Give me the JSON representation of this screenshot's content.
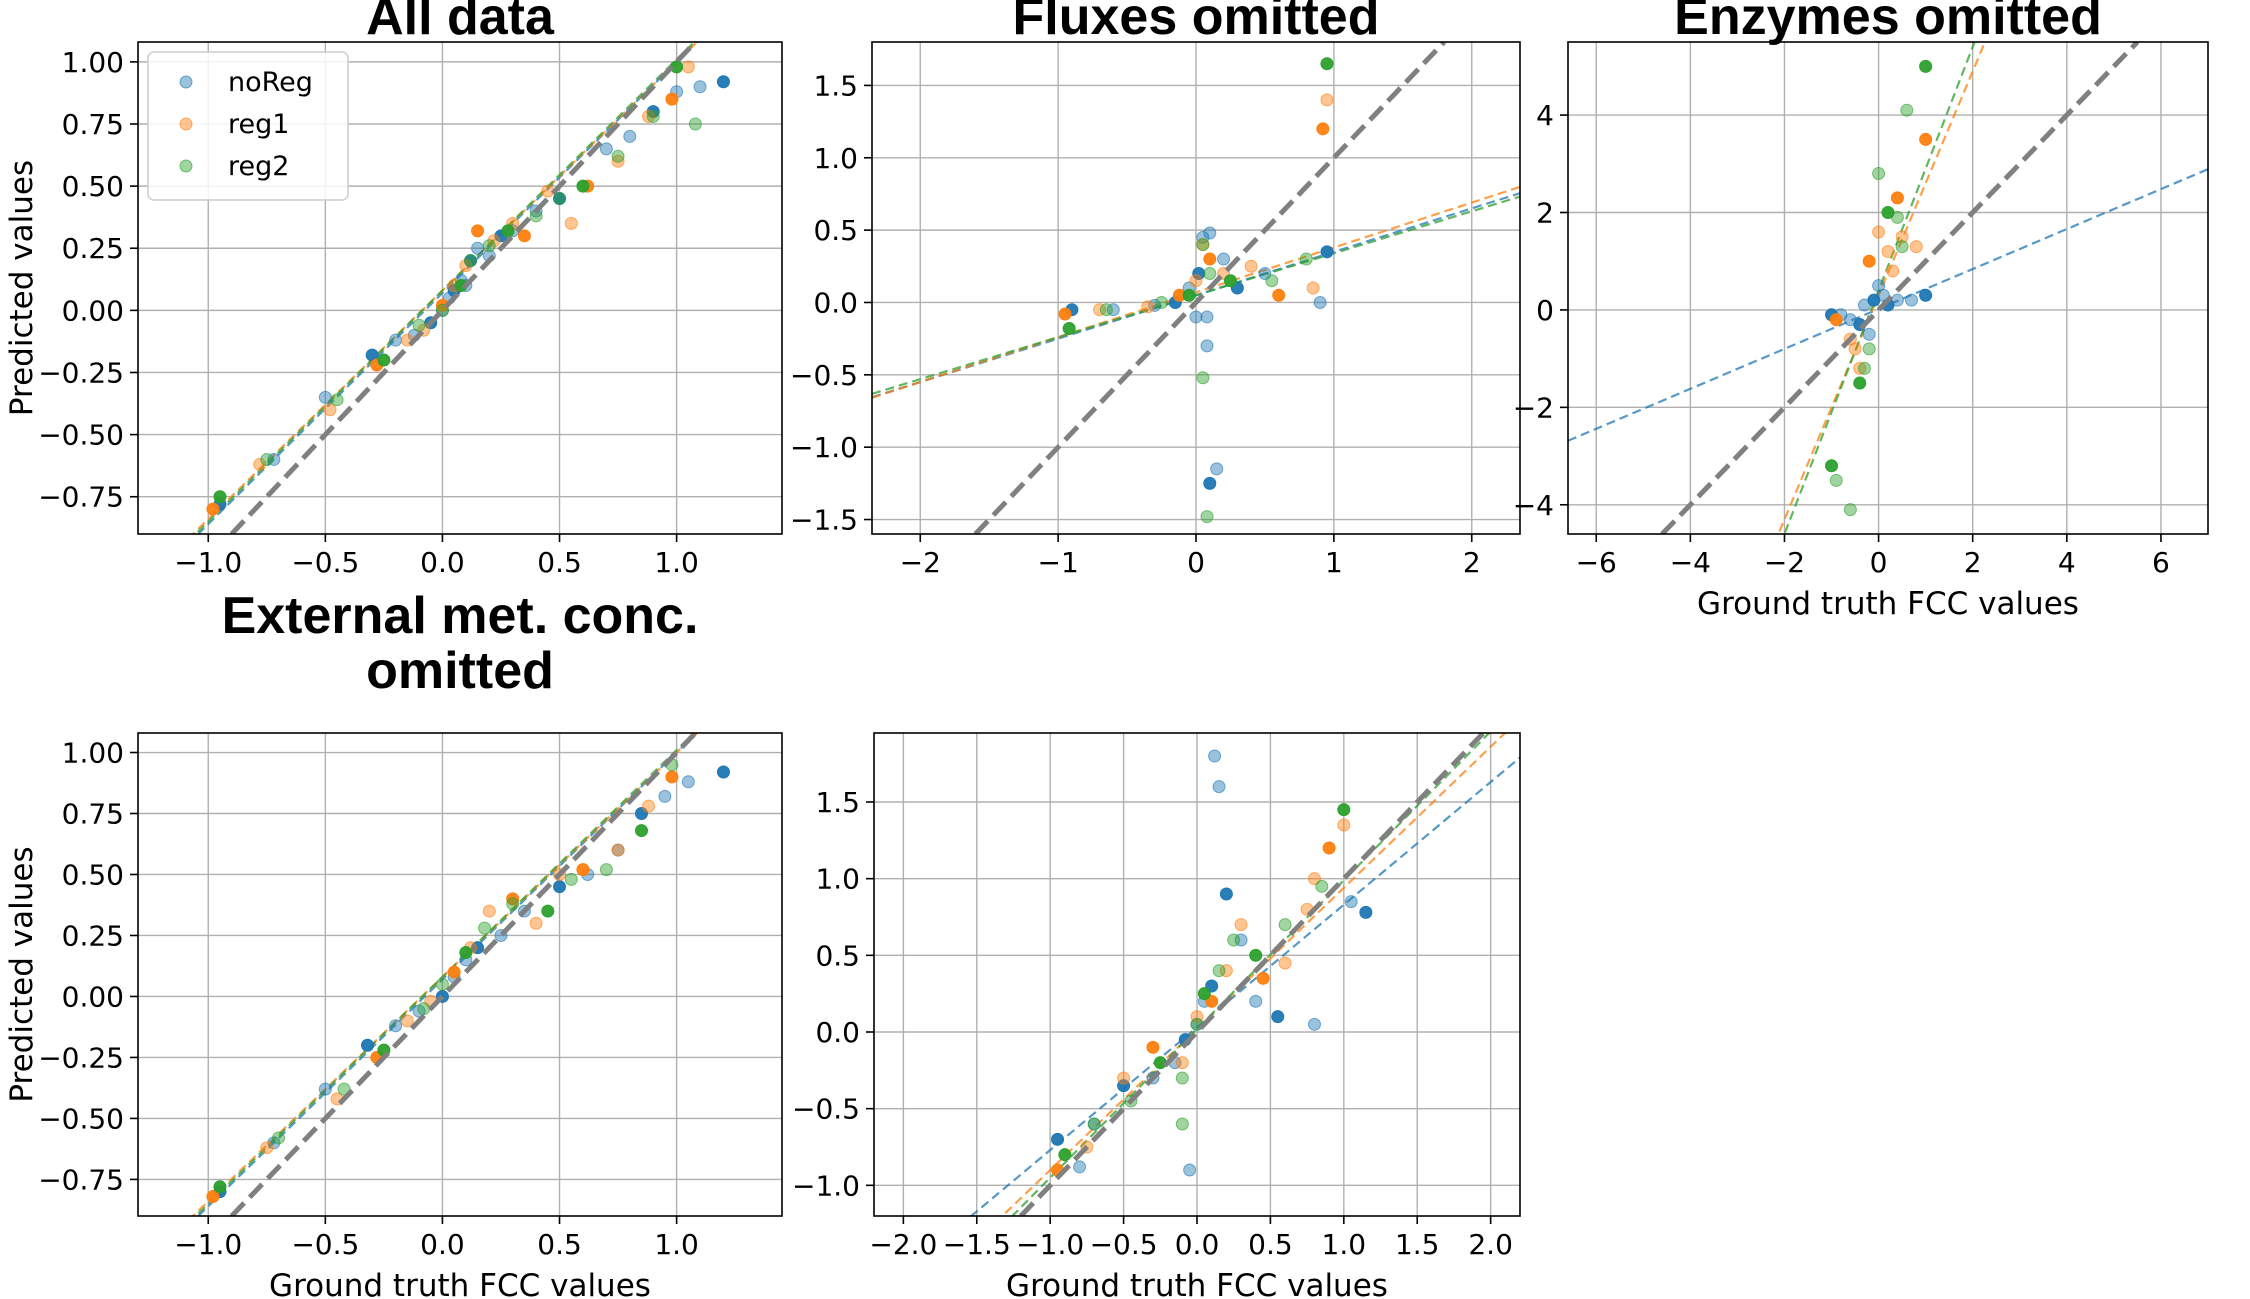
{
  "colors": {
    "noReg": "#1f77b4",
    "reg1": "#ff7f0e",
    "reg2": "#2ca02c",
    "identity": "#808080",
    "grid": "#b0b0b0"
  },
  "legend": {
    "location": "upper-left",
    "panel": 0,
    "entries": [
      "noReg",
      "reg1",
      "reg2"
    ]
  },
  "chart_data": [
    {
      "type": "scatter",
      "title": "All data",
      "xlabel": "",
      "ylabel": "Predicted values",
      "xlim": [
        -1.3,
        1.45
      ],
      "ylim": [
        -0.9,
        1.08
      ],
      "xticks": [
        -1.0,
        -0.5,
        0.0,
        0.5,
        1.0
      ],
      "xtick_labels": [
        "−1.0",
        "−0.5",
        "0.0",
        "0.5",
        "1.0"
      ],
      "yticks": [
        -0.75,
        -0.5,
        -0.25,
        0.0,
        0.25,
        0.5,
        0.75,
        1.0
      ],
      "ytick_labels": [
        "−0.75",
        "−0.50",
        "−0.25",
        "0.00",
        "0.25",
        "0.50",
        "0.75",
        "1.00"
      ],
      "grid": true,
      "identity_line": true,
      "fits": [
        {
          "name": "noReg",
          "slope": 0.93,
          "intercept": 0.07
        },
        {
          "name": "reg1",
          "slope": 0.92,
          "intercept": 0.08
        },
        {
          "name": "reg2",
          "slope": 0.93,
          "intercept": 0.08
        }
      ],
      "series": [
        {
          "name": "noReg",
          "x": [
            -0.95,
            -0.72,
            -0.5,
            -0.3,
            -0.2,
            -0.12,
            -0.05,
            0.0,
            0.03,
            0.05,
            0.08,
            0.1,
            0.12,
            0.15,
            0.2,
            0.25,
            0.3,
            0.4,
            0.5,
            0.7,
            0.8,
            0.9,
            1.0,
            1.1,
            1.2
          ],
          "y": [
            -0.78,
            -0.6,
            -0.35,
            -0.18,
            -0.12,
            -0.1,
            -0.05,
            0.0,
            0.05,
            0.08,
            0.12,
            0.1,
            0.2,
            0.25,
            0.22,
            0.3,
            0.32,
            0.4,
            0.45,
            0.65,
            0.7,
            0.8,
            0.88,
            0.9,
            0.92
          ]
        },
        {
          "name": "reg1",
          "x": [
            -0.98,
            -0.78,
            -0.48,
            -0.28,
            -0.15,
            -0.08,
            0.0,
            0.05,
            0.1,
            0.15,
            0.22,
            0.3,
            0.35,
            0.45,
            0.55,
            0.62,
            0.75,
            0.88,
            0.98,
            1.05
          ],
          "y": [
            -0.8,
            -0.62,
            -0.4,
            -0.22,
            -0.12,
            -0.08,
            0.02,
            0.1,
            0.18,
            0.32,
            0.28,
            0.35,
            0.3,
            0.48,
            0.35,
            0.5,
            0.6,
            0.78,
            0.85,
            0.98
          ]
        },
        {
          "name": "reg2",
          "x": [
            -0.95,
            -0.75,
            -0.45,
            -0.25,
            -0.1,
            0.0,
            0.08,
            0.12,
            0.2,
            0.28,
            0.4,
            0.5,
            0.6,
            0.75,
            0.9,
            1.0,
            1.08
          ],
          "y": [
            -0.75,
            -0.6,
            -0.36,
            -0.2,
            -0.06,
            0.0,
            0.1,
            0.2,
            0.26,
            0.32,
            0.38,
            0.45,
            0.5,
            0.62,
            0.78,
            0.98,
            0.75
          ]
        }
      ]
    },
    {
      "type": "scatter",
      "title": "Fluxes omitted",
      "xlabel": "",
      "ylabel": "",
      "xlim": [
        -2.35,
        2.35
      ],
      "ylim": [
        -1.6,
        1.8
      ],
      "xticks": [
        -2,
        -1,
        0,
        1,
        2
      ],
      "xtick_labels": [
        "−2",
        "−1",
        "0",
        "1",
        "2"
      ],
      "yticks": [
        -1.5,
        -1.0,
        -0.5,
        0.0,
        0.5,
        1.0,
        1.5
      ],
      "ytick_labels": [
        "−1.5",
        "−1.0",
        "−0.5",
        "0.0",
        "0.5",
        "1.0",
        "1.5"
      ],
      "grid": true,
      "identity_line": true,
      "fits": [
        {
          "name": "noReg",
          "slope": 0.3,
          "intercept": 0.05
        },
        {
          "name": "reg1",
          "slope": 0.31,
          "intercept": 0.07
        },
        {
          "name": "reg2",
          "slope": 0.29,
          "intercept": 0.05
        }
      ],
      "series": [
        {
          "name": "noReg",
          "x": [
            -0.9,
            -0.6,
            -0.3,
            -0.15,
            -0.05,
            0.0,
            0.02,
            0.05,
            0.08,
            0.1,
            0.15,
            0.2,
            0.3,
            0.5,
            0.9,
            0.95,
            0.1,
            0.08
          ],
          "y": [
            -0.05,
            -0.05,
            -0.02,
            0.0,
            0.1,
            -0.1,
            0.2,
            0.45,
            -0.1,
            -1.25,
            -1.15,
            0.3,
            0.1,
            0.2,
            0.0,
            0.35,
            0.48,
            -0.3
          ]
        },
        {
          "name": "reg1",
          "x": [
            -0.95,
            -0.7,
            -0.35,
            -0.12,
            0.0,
            0.05,
            0.1,
            0.2,
            0.4,
            0.6,
            0.85,
            0.95,
            0.92
          ],
          "y": [
            -0.08,
            -0.05,
            -0.03,
            0.05,
            0.15,
            0.4,
            0.3,
            0.2,
            0.25,
            0.05,
            0.1,
            1.4,
            1.2
          ]
        },
        {
          "name": "reg2",
          "x": [
            -0.92,
            -0.65,
            -0.25,
            -0.05,
            0.05,
            0.1,
            0.25,
            0.55,
            0.8,
            0.95,
            0.05,
            0.08
          ],
          "y": [
            -0.18,
            -0.05,
            0.0,
            0.05,
            0.4,
            0.2,
            0.15,
            0.15,
            0.3,
            1.65,
            -0.52,
            -1.48
          ]
        }
      ]
    },
    {
      "type": "scatter",
      "title": "Enzymes omitted",
      "xlabel": "Ground truth FCC values",
      "ylabel": "",
      "xlim": [
        -6.6,
        7.0
      ],
      "ylim": [
        -4.6,
        5.5
      ],
      "xticks": [
        -6,
        -4,
        -2,
        0,
        2,
        4,
        6
      ],
      "xtick_labels": [
        "−6",
        "−4",
        "−2",
        "0",
        "2",
        "4",
        "6"
      ],
      "yticks": [
        -4,
        -2,
        0,
        2,
        4
      ],
      "ytick_labels": [
        "−4",
        "−2",
        "0",
        "2",
        "4"
      ],
      "grid": true,
      "identity_line": true,
      "fits": [
        {
          "name": "noReg",
          "slope": 0.41,
          "intercept": 0.02
        },
        {
          "name": "reg1",
          "slope": 2.3,
          "intercept": 0.3
        },
        {
          "name": "reg2",
          "slope": 2.5,
          "intercept": 0.4
        }
      ],
      "series": [
        {
          "name": "noReg",
          "x": [
            -1.0,
            -0.8,
            -0.6,
            -0.4,
            -0.3,
            -0.2,
            -0.1,
            0.0,
            0.1,
            0.2,
            0.4,
            0.7,
            1.0
          ],
          "y": [
            -0.1,
            -0.1,
            -0.2,
            -0.3,
            0.1,
            -0.5,
            0.2,
            0.5,
            0.3,
            0.1,
            0.2,
            0.2,
            0.3
          ]
        },
        {
          "name": "reg1",
          "x": [
            -0.9,
            -0.6,
            -0.4,
            -0.2,
            0.0,
            0.2,
            0.4,
            0.5,
            0.8,
            1.0,
            0.3,
            -0.5
          ],
          "y": [
            -0.2,
            -0.6,
            -1.2,
            1.0,
            1.6,
            1.2,
            2.3,
            1.5,
            1.3,
            3.5,
            0.8,
            -0.8
          ]
        },
        {
          "name": "reg2",
          "x": [
            -1.0,
            -0.9,
            -0.6,
            -0.4,
            -0.2,
            0.0,
            0.2,
            0.4,
            0.6,
            1.0,
            0.5,
            -0.3
          ],
          "y": [
            -3.2,
            -3.5,
            -4.1,
            -1.5,
            -0.8,
            2.8,
            2.0,
            1.9,
            4.1,
            5.0,
            1.3,
            -1.2
          ]
        }
      ]
    },
    {
      "type": "scatter",
      "title": "External met. conc. omitted",
      "title_lines": [
        "External met. conc.",
        "omitted"
      ],
      "xlabel": "Ground truth FCC values",
      "ylabel": "Predicted values",
      "xlim": [
        -1.3,
        1.45
      ],
      "ylim": [
        -0.9,
        1.08
      ],
      "xticks": [
        -1.0,
        -0.5,
        0.0,
        0.5,
        1.0
      ],
      "xtick_labels": [
        "−1.0",
        "−0.5",
        "0.0",
        "0.5",
        "1.0"
      ],
      "yticks": [
        -0.75,
        -0.5,
        -0.25,
        0.0,
        0.25,
        0.5,
        0.75,
        1.0
      ],
      "ytick_labels": [
        "−0.75",
        "−0.50",
        "−0.25",
        "0.00",
        "0.25",
        "0.50",
        "0.75",
        "1.00"
      ],
      "grid": true,
      "identity_line": true,
      "fits": [
        {
          "name": "noReg",
          "slope": 0.93,
          "intercept": 0.07
        },
        {
          "name": "reg1",
          "slope": 0.92,
          "intercept": 0.08
        },
        {
          "name": "reg2",
          "slope": 0.93,
          "intercept": 0.08
        }
      ],
      "series": [
        {
          "name": "noReg",
          "x": [
            -0.95,
            -0.72,
            -0.5,
            -0.32,
            -0.2,
            -0.1,
            0.0,
            0.05,
            0.1,
            0.15,
            0.25,
            0.35,
            0.5,
            0.62,
            0.75,
            0.85,
            0.95,
            1.05,
            1.2
          ],
          "y": [
            -0.8,
            -0.6,
            -0.38,
            -0.2,
            -0.12,
            -0.06,
            0.0,
            0.08,
            0.15,
            0.2,
            0.25,
            0.35,
            0.45,
            0.5,
            0.6,
            0.75,
            0.82,
            0.88,
            0.92
          ]
        },
        {
          "name": "reg1",
          "x": [
            -0.98,
            -0.75,
            -0.45,
            -0.28,
            -0.15,
            -0.05,
            0.05,
            0.12,
            0.2,
            0.3,
            0.4,
            0.5,
            0.6,
            0.75,
            0.88,
            0.98
          ],
          "y": [
            -0.82,
            -0.62,
            -0.42,
            -0.25,
            -0.1,
            -0.02,
            0.1,
            0.2,
            0.35,
            0.4,
            0.3,
            0.5,
            0.52,
            0.6,
            0.78,
            0.9
          ]
        },
        {
          "name": "reg2",
          "x": [
            -0.95,
            -0.7,
            -0.42,
            -0.25,
            -0.08,
            0.0,
            0.1,
            0.18,
            0.3,
            0.45,
            0.55,
            0.7,
            0.85,
            0.98
          ],
          "y": [
            -0.78,
            -0.58,
            -0.38,
            -0.22,
            -0.05,
            0.05,
            0.18,
            0.28,
            0.38,
            0.35,
            0.48,
            0.52,
            0.68,
            0.95
          ]
        }
      ]
    },
    {
      "type": "scatter",
      "title": "",
      "xlabel": "Ground truth FCC values",
      "ylabel": "",
      "xlim": [
        -2.2,
        2.2
      ],
      "ylim": [
        -1.2,
        1.95
      ],
      "xticks": [
        -2.0,
        -1.5,
        -1.0,
        -0.5,
        0.0,
        0.5,
        1.0,
        1.5,
        2.0
      ],
      "xtick_labels": [
        "−2.0",
        "−1.5",
        "−1.0",
        "−0.5",
        "0.0",
        "0.5",
        "1.0",
        "1.5",
        "2.0"
      ],
      "yticks": [
        -1.0,
        -0.5,
        0.0,
        0.5,
        1.0,
        1.5
      ],
      "ytick_labels": [
        "−1.0",
        "−0.5",
        "0.0",
        "0.5",
        "1.0",
        "1.5"
      ],
      "grid": true,
      "identity_line": true,
      "fits": [
        {
          "name": "noReg",
          "slope": 0.8,
          "intercept": 0.03
        },
        {
          "name": "reg1",
          "slope": 0.92,
          "intercept": 0.02
        },
        {
          "name": "reg2",
          "slope": 0.97,
          "intercept": 0.02
        }
      ],
      "series": [
        {
          "name": "noReg",
          "x": [
            -0.95,
            -0.8,
            -0.7,
            -0.5,
            -0.3,
            -0.15,
            -0.08,
            0.0,
            0.05,
            0.1,
            0.12,
            0.15,
            0.2,
            0.3,
            0.4,
            0.55,
            0.8,
            1.05,
            1.15,
            -0.05
          ],
          "y": [
            -0.7,
            -0.88,
            -0.6,
            -0.35,
            -0.3,
            -0.2,
            -0.05,
            0.05,
            0.2,
            0.3,
            1.8,
            1.6,
            0.9,
            0.6,
            0.2,
            0.1,
            0.05,
            0.85,
            0.78,
            -0.9
          ]
        },
        {
          "name": "reg1",
          "x": [
            -0.95,
            -0.75,
            -0.5,
            -0.3,
            -0.1,
            0.0,
            0.1,
            0.2,
            0.3,
            0.45,
            0.6,
            0.8,
            0.9,
            1.0,
            0.75
          ],
          "y": [
            -0.9,
            -0.75,
            -0.3,
            -0.1,
            -0.2,
            0.1,
            0.2,
            0.4,
            0.7,
            0.35,
            0.45,
            1.0,
            1.2,
            1.35,
            0.8
          ]
        },
        {
          "name": "reg2",
          "x": [
            -0.9,
            -0.7,
            -0.45,
            -0.25,
            -0.1,
            0.0,
            0.05,
            0.15,
            0.25,
            0.4,
            0.6,
            0.85,
            1.0,
            -0.1
          ],
          "y": [
            -0.8,
            -0.6,
            -0.45,
            -0.2,
            -0.3,
            0.05,
            0.25,
            0.4,
            0.6,
            0.5,
            0.7,
            0.95,
            1.45,
            -0.6
          ]
        }
      ]
    }
  ]
}
